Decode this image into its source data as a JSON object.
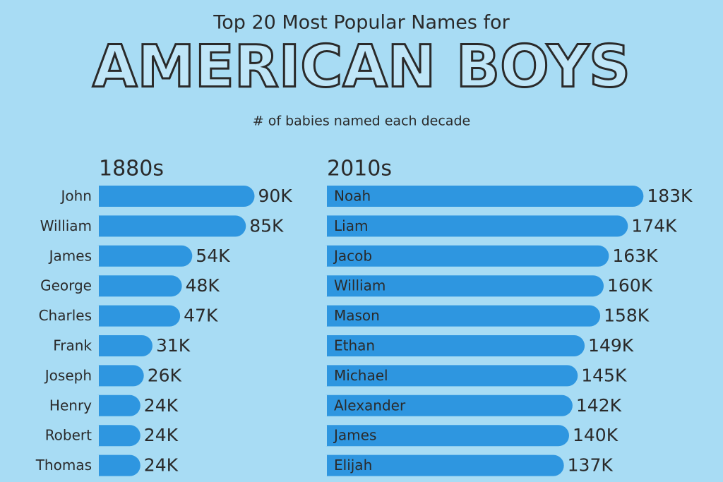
{
  "header": {
    "title": "Top 20 Most Popular Names for",
    "headline": "AMERICAN BOYS",
    "subtitle": "# of babies named each decade"
  },
  "chart_data": [
    {
      "type": "hbar",
      "title": "1880s",
      "color": "#2e96e0",
      "categories": [
        "John",
        "William",
        "James",
        "George",
        "Charles",
        "Frank",
        "Joseph",
        "Henry",
        "Robert",
        "Thomas"
      ],
      "values": [
        90000,
        85000,
        54000,
        48000,
        47000,
        31000,
        26000,
        24000,
        24000,
        24000
      ],
      "value_labels": [
        "90K",
        "85K",
        "54K",
        "48K",
        "47K",
        "31K",
        "26K",
        "24K",
        "24K",
        "24K"
      ]
    },
    {
      "type": "hbar",
      "title": "2010s",
      "color": "#2e96e0",
      "categories": [
        "Noah",
        "Liam",
        "Jacob",
        "William",
        "Mason",
        "Ethan",
        "Michael",
        "Alexander",
        "James",
        "Elijah"
      ],
      "values": [
        183000,
        174000,
        163000,
        160000,
        158000,
        149000,
        145000,
        142000,
        140000,
        137000
      ],
      "value_labels": [
        "183K",
        "174K",
        "163K",
        "160K",
        "158K",
        "149K",
        "145K",
        "142K",
        "140K",
        "137K"
      ]
    }
  ]
}
